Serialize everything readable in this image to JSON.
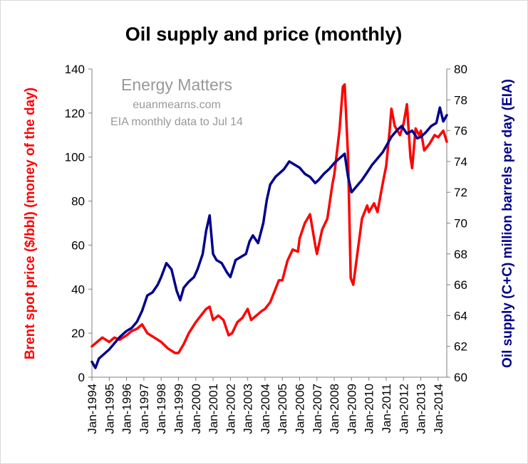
{
  "chart_data": {
    "type": "line",
    "title": "Oil supply and price (monthly)",
    "xlabel": "",
    "ylabel_left": "Brent spot price ($/bbl) (money of the day)",
    "ylabel_right": "Oil supply (C+C) million barrels per day (EIA)",
    "ylim_left": [
      0,
      140
    ],
    "ylim_right": [
      60,
      80
    ],
    "yticks_left": [
      "0",
      "20",
      "40",
      "60",
      "80",
      "100",
      "120",
      "140"
    ],
    "yticks_right": [
      "60",
      "62",
      "64",
      "66",
      "68",
      "70",
      "72",
      "74",
      "76",
      "78",
      "80"
    ],
    "x_range": [
      1994.0,
      2014.5
    ],
    "xticks": [
      "Jan-1994",
      "Jan-1995",
      "Jan-1996",
      "Jan-1997",
      "Jan-1998",
      "Jan-1999",
      "Jan-2000",
      "Jan-2001",
      "Jan-2002",
      "Jan-2003",
      "Jan-2004",
      "Jan-2005",
      "Jan-2006",
      "Jan-2007",
      "Jan-2008",
      "Jan-2009",
      "Jan-2010",
      "Jan-2011",
      "Jan-2012",
      "Jan-2013",
      "Jan-2014"
    ],
    "annotations": [
      "Energy Matters",
      "euanmearns.com",
      "EIA monthly data to Jul 14"
    ],
    "series": [
      {
        "name": "Brent spot price",
        "axis": "left",
        "color": "#ff0000",
        "x": [
          1994.0,
          1994.3,
          1994.6,
          1995.0,
          1995.3,
          1995.6,
          1996.0,
          1996.3,
          1996.6,
          1996.9,
          1997.2,
          1997.6,
          1998.0,
          1998.4,
          1998.8,
          1999.0,
          1999.3,
          1999.6,
          2000.0,
          2000.3,
          2000.6,
          2000.8,
          2001.0,
          2001.3,
          2001.6,
          2001.9,
          2002.1,
          2002.4,
          2002.7,
          2003.0,
          2003.2,
          2003.5,
          2003.8,
          2004.0,
          2004.3,
          2004.6,
          2004.8,
          2005.0,
          2005.3,
          2005.6,
          2005.9,
          2006.0,
          2006.3,
          2006.6,
          2006.9,
          2007.0,
          2007.3,
          2007.6,
          2007.9,
          2008.0,
          2008.3,
          2008.5,
          2008.6,
          2008.8,
          2008.95,
          2009.1,
          2009.4,
          2009.6,
          2009.9,
          2010.0,
          2010.3,
          2010.5,
          2010.8,
          2011.0,
          2011.2,
          2011.3,
          2011.5,
          2011.8,
          2012.0,
          2012.2,
          2012.4,
          2012.5,
          2012.7,
          2012.9,
          2013.0,
          2013.2,
          2013.5,
          2013.8,
          2014.0,
          2014.3,
          2014.5
        ],
        "values": [
          14,
          16,
          18,
          16,
          18,
          17,
          19,
          21,
          22,
          24,
          20,
          18,
          16,
          13,
          11,
          11,
          15,
          20,
          25,
          28,
          31,
          32,
          26,
          28,
          26,
          19,
          20,
          25,
          27,
          31,
          26,
          28,
          30,
          31,
          34,
          40,
          44,
          44,
          53,
          58,
          57,
          63,
          70,
          74,
          60,
          56,
          67,
          72,
          88,
          92,
          112,
          132,
          133,
          100,
          45,
          42,
          60,
          72,
          78,
          75,
          79,
          75,
          88,
          96,
          112,
          122,
          114,
          110,
          115,
          124,
          100,
          95,
          113,
          110,
          112,
          103,
          106,
          110,
          109,
          112,
          107
        ]
      },
      {
        "name": "Oil supply (C+C)",
        "axis": "right",
        "color": "#00008b",
        "x": [
          1994.0,
          1994.2,
          1994.4,
          1994.7,
          1995.0,
          1995.3,
          1995.6,
          1996.0,
          1996.3,
          1996.6,
          1996.9,
          1997.2,
          1997.5,
          1997.8,
          1998.0,
          1998.3,
          1998.6,
          1998.9,
          1999.1,
          1999.3,
          1999.6,
          1999.9,
          2000.1,
          2000.4,
          2000.6,
          2000.8,
          2001.0,
          2001.2,
          2001.5,
          2001.8,
          2002.0,
          2002.3,
          2002.6,
          2002.9,
          2003.1,
          2003.3,
          2003.6,
          2003.9,
          2004.1,
          2004.3,
          2004.6,
          2004.9,
          2005.1,
          2005.4,
          2005.7,
          2006.0,
          2006.3,
          2006.6,
          2006.9,
          2007.1,
          2007.4,
          2007.7,
          2008.0,
          2008.3,
          2008.6,
          2008.8,
          2009.0,
          2009.3,
          2009.6,
          2009.9,
          2010.2,
          2010.5,
          2010.8,
          2011.0,
          2011.3,
          2011.6,
          2011.9,
          2012.2,
          2012.5,
          2012.8,
          2013.0,
          2013.3,
          2013.6,
          2013.9,
          2014.1,
          2014.3,
          2014.5
        ],
        "values": [
          61.0,
          60.6,
          61.2,
          61.5,
          61.8,
          62.2,
          62.6,
          63.0,
          63.2,
          63.6,
          64.3,
          65.3,
          65.5,
          66.0,
          66.5,
          67.4,
          67.0,
          65.6,
          65.0,
          65.8,
          66.2,
          66.5,
          67.0,
          68.0,
          69.5,
          70.5,
          68.0,
          67.6,
          67.4,
          66.8,
          66.5,
          67.6,
          67.8,
          68.0,
          68.8,
          69.2,
          68.7,
          70.0,
          71.5,
          72.5,
          73.0,
          73.3,
          73.5,
          74.0,
          73.8,
          73.6,
          73.2,
          73.0,
          72.6,
          72.8,
          73.2,
          73.5,
          73.9,
          74.2,
          74.5,
          73.0,
          72.0,
          72.4,
          72.8,
          73.3,
          73.8,
          74.2,
          74.6,
          75.0,
          75.6,
          76.0,
          76.3,
          75.8,
          76.0,
          75.5,
          75.6,
          75.9,
          76.3,
          76.5,
          77.5,
          76.6,
          77.0
        ]
      }
    ]
  }
}
